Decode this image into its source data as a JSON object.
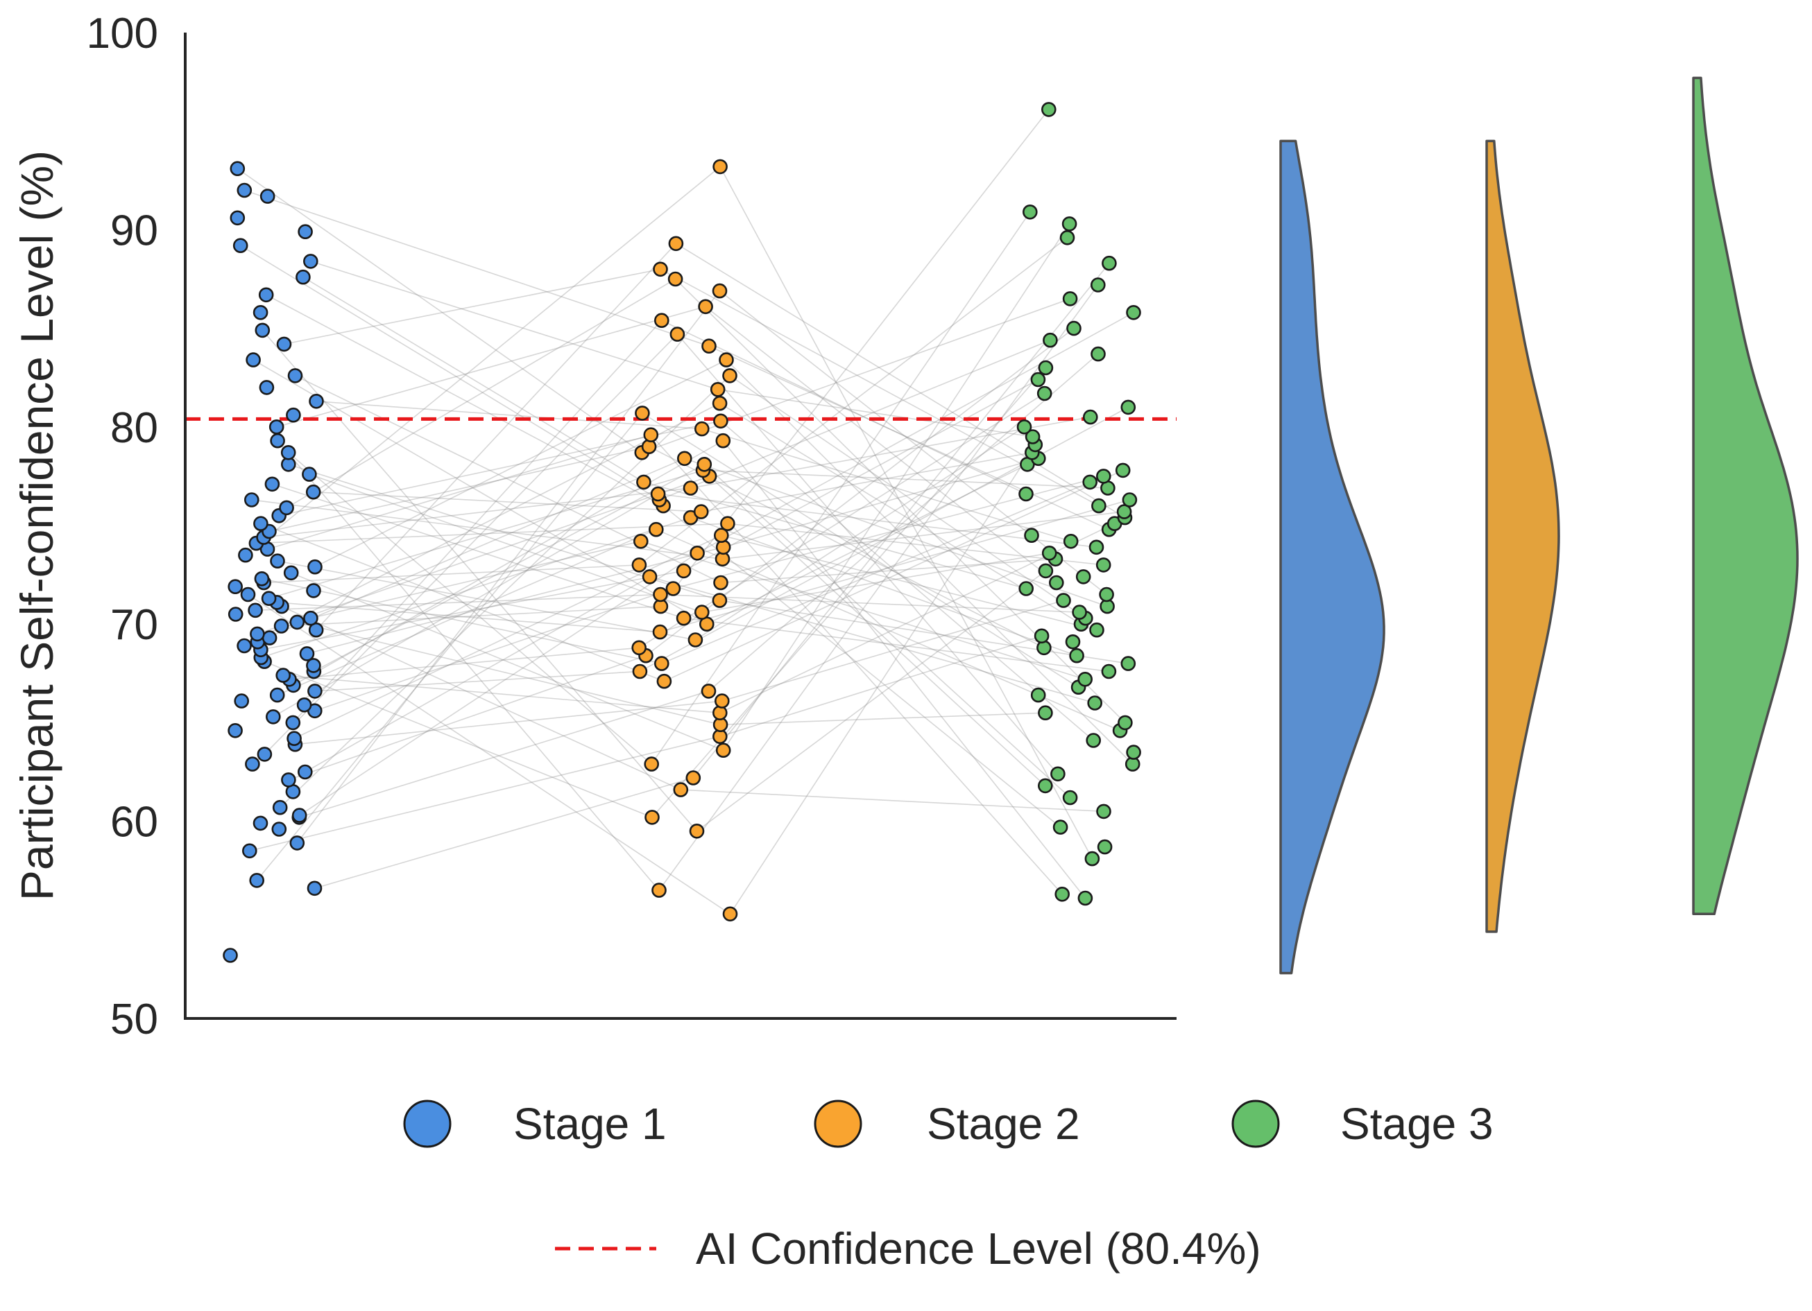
{
  "chart_data": {
    "type": "scatter",
    "ylabel": "Participant Self-confidence Level (%)",
    "xlabel": "",
    "ylim": [
      50,
      100
    ],
    "y_ticks": [
      "50",
      "60",
      "70",
      "80",
      "90",
      "100"
    ],
    "grid": false,
    "legend_position": "bottom",
    "paired_lines": true,
    "reference_line": {
      "value": 80.4,
      "label": "AI Confidence Level (80.4%)",
      "color": "#e8181b",
      "style": "dashed"
    },
    "series": [
      {
        "name": "Stage 1",
        "color": "#4a8ee0",
        "values": [
          53.2,
          56.6,
          57.0,
          58.5,
          58.9,
          59.6,
          59.9,
          60.2,
          60.3,
          60.7,
          61.5,
          62.1,
          62.5,
          62.9,
          63.4,
          63.9,
          64.2,
          64.6,
          65.0,
          65.3,
          65.6,
          65.9,
          66.1,
          66.4,
          66.6,
          66.9,
          67.2,
          67.4,
          67.6,
          67.9,
          68.1,
          68.3,
          68.5,
          68.7,
          68.9,
          69.1,
          69.3,
          69.5,
          69.7,
          69.9,
          70.1,
          70.3,
          70.5,
          70.7,
          70.9,
          71.1,
          71.3,
          71.5,
          71.7,
          71.9,
          72.1,
          72.3,
          72.6,
          72.9,
          73.2,
          73.5,
          73.8,
          74.1,
          74.4,
          74.7,
          75.1,
          75.5,
          75.9,
          76.3,
          76.7,
          77.1,
          77.6,
          78.1,
          78.7,
          79.3,
          80.0,
          80.6,
          81.3,
          82.0,
          82.6,
          83.4,
          84.2,
          84.9,
          85.8,
          86.7,
          87.6,
          88.4,
          89.2,
          89.9,
          90.6,
          91.7,
          92.0,
          93.1
        ]
      },
      {
        "name": "Stage 2",
        "color": "#f9a430",
        "values": [
          55.3,
          56.5,
          59.5,
          60.2,
          61.6,
          62.2,
          62.9,
          63.6,
          64.3,
          64.9,
          65.5,
          66.1,
          66.6,
          67.1,
          67.6,
          68.0,
          68.4,
          68.8,
          69.2,
          69.6,
          70.0,
          70.3,
          70.6,
          70.9,
          71.2,
          71.5,
          71.8,
          72.1,
          72.4,
          72.7,
          73.0,
          73.3,
          73.6,
          73.9,
          74.2,
          74.5,
          74.8,
          75.1,
          75.4,
          75.7,
          76.0,
          76.3,
          76.6,
          76.9,
          77.2,
          77.5,
          77.8,
          78.1,
          78.4,
          78.7,
          79.0,
          79.3,
          79.6,
          79.9,
          80.3,
          80.7,
          81.2,
          81.9,
          82.6,
          83.4,
          84.1,
          84.7,
          85.4,
          86.1,
          86.9,
          87.5,
          88.0,
          89.3,
          93.2
        ]
      },
      {
        "name": "Stage 3",
        "color": "#65bf6a",
        "values": [
          56.1,
          56.3,
          58.1,
          58.7,
          59.7,
          60.5,
          61.2,
          61.8,
          62.4,
          62.9,
          63.5,
          64.1,
          64.6,
          65.0,
          65.5,
          66.0,
          66.4,
          66.8,
          67.2,
          67.6,
          68.0,
          68.4,
          68.8,
          69.1,
          69.4,
          69.7,
          70.0,
          70.3,
          70.6,
          70.9,
          71.2,
          71.5,
          71.8,
          72.1,
          72.4,
          72.7,
          73.0,
          73.3,
          73.6,
          73.9,
          74.2,
          74.5,
          74.8,
          75.1,
          75.4,
          75.7,
          76.0,
          76.3,
          76.6,
          76.9,
          77.2,
          77.5,
          77.8,
          78.1,
          78.4,
          78.7,
          79.1,
          79.5,
          80.0,
          80.5,
          81.0,
          81.7,
          82.4,
          83.0,
          83.7,
          84.4,
          85.0,
          85.8,
          86.5,
          87.2,
          88.3,
          89.6,
          90.3,
          90.9,
          96.1
        ]
      }
    ],
    "density": [
      {
        "name": "Stage 1",
        "color": "#5a8fd0",
        "range": [
          52.3,
          94.5
        ],
        "mode": 70.1
      },
      {
        "name": "Stage 2",
        "color": "#e3a23c",
        "range": [
          54.4,
          94.5
        ],
        "mode": 74.0
      },
      {
        "name": "Stage 3",
        "color": "#6bbd70",
        "range": [
          55.3,
          97.7
        ],
        "mode": 71.8
      }
    ]
  }
}
